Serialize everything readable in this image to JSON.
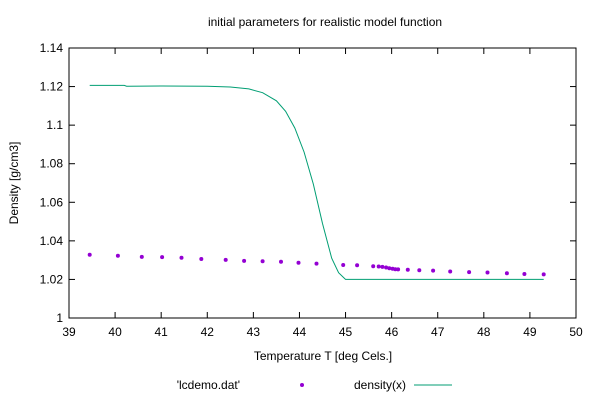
{
  "chart_data": {
    "type": "scatter",
    "title": "initial parameters for realistic model function",
    "xlabel": "Temperature T  [deg Cels.]",
    "ylabel": "Density [g/cm3]",
    "xlim": [
      39,
      50
    ],
    "ylim": [
      1,
      1.14
    ],
    "xticks": [
      "39",
      "40",
      "41",
      "42",
      "43",
      "44",
      "45",
      "46",
      "47",
      "48",
      "49",
      "50"
    ],
    "yticks": [
      "1",
      "1.02",
      "1.04",
      "1.06",
      "1.08",
      "1.1",
      "1.12",
      "1.14"
    ],
    "grid": false,
    "legend_position": "bottom",
    "series": [
      {
        "name": "'lcdemo.dat'",
        "kind": "points",
        "color": "#9400d3",
        "x": [
          39.45,
          40.06,
          40.58,
          41.02,
          41.44,
          41.87,
          42.4,
          42.8,
          43.2,
          43.6,
          43.98,
          44.37,
          44.95,
          45.25,
          45.6,
          45.72,
          45.8,
          45.88,
          45.95,
          46.02,
          46.08,
          46.14,
          46.35,
          46.6,
          46.9,
          47.27,
          47.68,
          48.08,
          48.5,
          48.88,
          49.3
        ],
        "y": [
          1.0328,
          1.0323,
          1.0317,
          1.0316,
          1.0312,
          1.0306,
          1.0301,
          1.0296,
          1.0294,
          1.0292,
          1.0286,
          1.0282,
          1.0275,
          1.0273,
          1.0268,
          1.0267,
          1.0265,
          1.0262,
          1.0258,
          1.0255,
          1.0253,
          1.0252,
          1.025,
          1.0248,
          1.0246,
          1.0241,
          1.0238,
          1.0236,
          1.0232,
          1.0228,
          1.0226
        ]
      },
      {
        "name": "density(x)",
        "kind": "line",
        "color": "#009e73",
        "x": [
          39.45,
          40.2,
          40.25,
          41.0,
          42.0,
          42.5,
          42.9,
          43.2,
          43.5,
          43.7,
          43.9,
          44.1,
          44.3,
          44.5,
          44.7,
          44.85,
          45.0,
          45.1,
          46.0,
          47.0,
          48.0,
          49.3
        ],
        "y": [
          1.1206,
          1.1206,
          1.1202,
          1.1203,
          1.1202,
          1.1198,
          1.1188,
          1.1168,
          1.1126,
          1.1072,
          1.0985,
          1.086,
          1.0695,
          1.049,
          1.031,
          1.0235,
          1.02,
          1.02,
          1.02,
          1.02,
          1.02,
          1.02
        ]
      }
    ]
  }
}
